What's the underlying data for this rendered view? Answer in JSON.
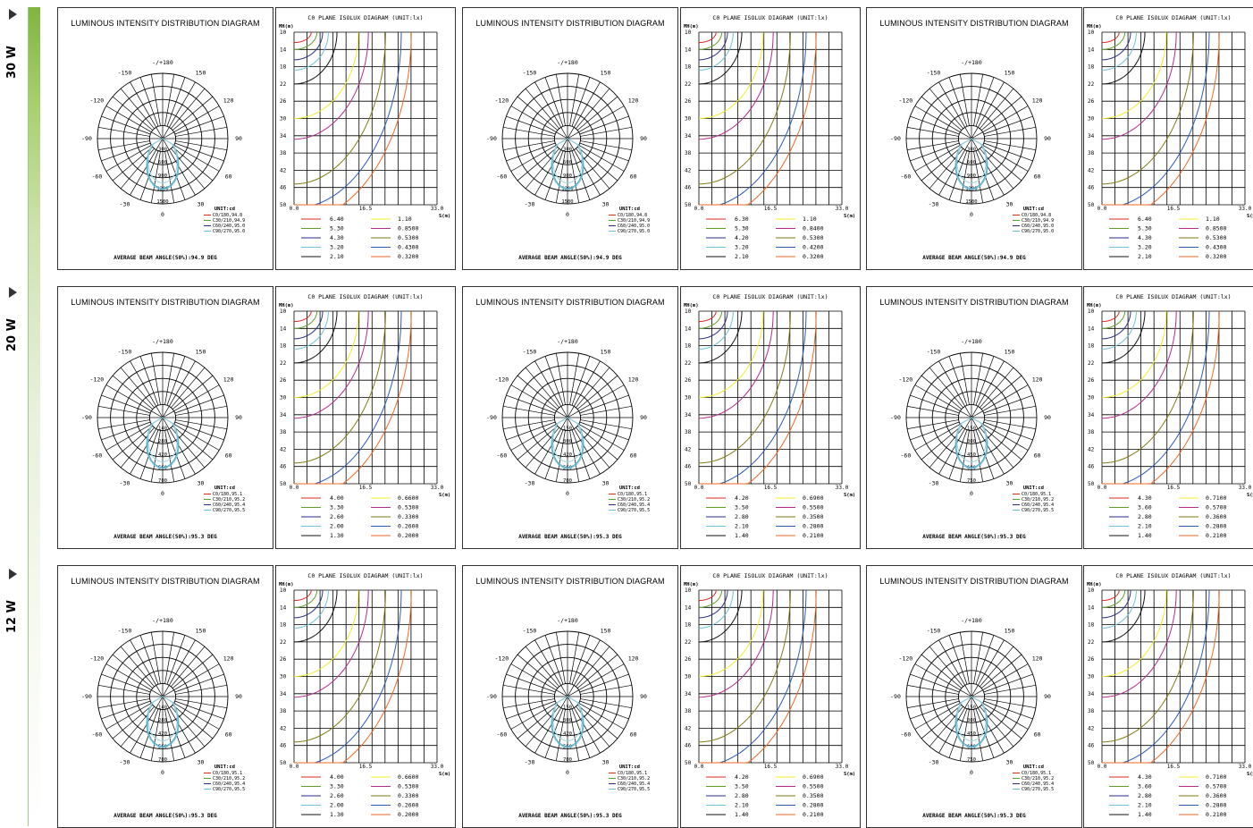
{
  "rows": [
    {
      "power": "30 W",
      "panels": [
        {
          "polar": {
            "title": "LUMINOUS INTENSITY DISTRIBUTION DIAGRAM",
            "angles": [
              "-/+180",
              "150",
              "120",
              "90",
              "60",
              "30",
              "0",
              "-30",
              "-60",
              "-90",
              "-120",
              "-150"
            ],
            "rings": [
              "300",
              "600",
              "900",
              "1200",
              "1500"
            ],
            "unit": "UNIT:cd",
            "legend": [
              "C0/180,94.8",
              "C30/210,94.9",
              "C60/240,95.0",
              "C90/270,95.0"
            ],
            "beam": "AVERAGE BEAM ANGLE(50%):94.9 DEG"
          },
          "isolux": {
            "title": "C0 PLANE ISOLUX DIAGRAM (UNIT:lx)",
            "mh": "MH(m)",
            "y_ticks": [
              "10",
              "14",
              "18",
              "22",
              "26",
              "30",
              "34",
              "38",
              "42",
              "46",
              "50"
            ],
            "x_ticks": [
              "0.0",
              "16.5",
              "33.0"
            ],
            "s_unit": "S(m)",
            "legend_left": [
              "6.40",
              "5.30",
              "4.30",
              "3.20",
              "2.10"
            ],
            "legend_right": [
              "1.10",
              "0.8500",
              "0.5300",
              "0.4300",
              "0.3200"
            ]
          }
        },
        {
          "polar": {
            "title": "LUMINOUS INTENSITY DISTRIBUTION DIAGRAM",
            "angles": [
              "-/+180",
              "150",
              "120",
              "90",
              "60",
              "30",
              "0",
              "-30",
              "-60",
              "-90",
              "-120",
              "-150"
            ],
            "rings": [
              "300",
              "600",
              "900",
              "1200",
              "1500"
            ],
            "unit": "UNIT:cd",
            "legend": [
              "C0/180,94.8",
              "C30/210,94.9",
              "C60/240,95.0",
              "C90/270,95.0"
            ],
            "beam": "AVERAGE BEAM ANGLE(50%):94.9 DEG"
          },
          "isolux": {
            "title": "C0 PLANE ISOLUX DIAGRAM (UNIT:lx)",
            "mh": "MH(m)",
            "y_ticks": [
              "10",
              "14",
              "18",
              "22",
              "26",
              "30",
              "34",
              "38",
              "42",
              "46",
              "50"
            ],
            "x_ticks": [
              "0.0",
              "16.5",
              "33.0"
            ],
            "s_unit": "S(m)",
            "legend_left": [
              "6.30",
              "5.30",
              "4.20",
              "3.20",
              "2.10"
            ],
            "legend_right": [
              "1.10",
              "0.8400",
              "0.5300",
              "0.4200",
              "0.3200"
            ]
          }
        },
        {
          "polar": {
            "title": "LUMINOUS INTENSITY DISTRIBUTION DIAGRAM",
            "angles": [
              "-/+180",
              "150",
              "120",
              "90",
              "60",
              "30",
              "0",
              "-30",
              "-60",
              "-90",
              "-120",
              "-150"
            ],
            "rings": [
              "300",
              "600",
              "900",
              "1200",
              "1500"
            ],
            "unit": "UNIT:cd",
            "legend": [
              "C0/180,94.8",
              "C30/210,94.9",
              "C60/240,95.0",
              "C90/270,95.0"
            ],
            "beam": "AVERAGE BEAM ANGLE(50%):94.9 DEG"
          },
          "isolux": {
            "title": "C0 PLANE ISOLUX DIAGRAM (UNIT:lx)",
            "mh": "MH(m)",
            "y_ticks": [
              "10",
              "14",
              "18",
              "22",
              "26",
              "30",
              "34",
              "38",
              "42",
              "46",
              "50"
            ],
            "x_ticks": [
              "0.0",
              "16.5",
              "33.0"
            ],
            "s_unit": "S(m)",
            "legend_left": [
              "6.40",
              "5.30",
              "4.30",
              "3.20",
              "2.10"
            ],
            "legend_right": [
              "1.10",
              "0.8500",
              "0.5300",
              "0.4300",
              "0.3200"
            ]
          }
        }
      ]
    },
    {
      "power": "20 W",
      "panels": [
        {
          "polar": {
            "title": "LUMINOUS INTENSITY DISTRIBUTION DIAGRAM",
            "angles": [
              "-/+180",
              "150",
              "120",
              "90",
              "60",
              "30",
              "0",
              "-30",
              "-60",
              "-90",
              "-120",
              "-150"
            ],
            "rings": [
              "140",
              "280",
              "420",
              "560",
              "700"
            ],
            "unit": "UNIT:cd",
            "legend": [
              "C0/180,95.1",
              "C30/210,95.2",
              "C60/240,95.4",
              "C90/270,95.5"
            ],
            "beam": "AVERAGE BEAM ANGLE(50%):95.3 DEG"
          },
          "isolux": {
            "title": "C0 PLANE ISOLUX DIAGRAM (UNIT:lx)",
            "mh": "MH(m)",
            "y_ticks": [
              "10",
              "14",
              "18",
              "22",
              "26",
              "30",
              "34",
              "38",
              "42",
              "46",
              "50"
            ],
            "x_ticks": [
              "0.0",
              "16.5",
              "33.0"
            ],
            "s_unit": "S(m)",
            "legend_left": [
              "4.00",
              "3.30",
              "2.60",
              "2.00",
              "1.30"
            ],
            "legend_right": [
              "0.6600",
              "0.5300",
              "0.3300",
              "0.2600",
              "0.2000"
            ]
          }
        },
        {
          "polar": {
            "title": "LUMINOUS INTENSITY DISTRIBUTION DIAGRAM",
            "angles": [
              "-/+180",
              "150",
              "120",
              "90",
              "60",
              "30",
              "0",
              "-30",
              "-60",
              "-90",
              "-120",
              "-150"
            ],
            "rings": [
              "150",
              "300",
              "420",
              "560",
              "700"
            ],
            "unit": "UNIT:cd",
            "legend": [
              "C0/180,95.1",
              "C30/210,95.2",
              "C60/240,95.4",
              "C90/270,95.5"
            ],
            "beam": "AVERAGE BEAM ANGLE(50%):95.3 DEG"
          },
          "isolux": {
            "title": "C0 PLANE ISOLUX DIAGRAM (UNIT:lx)",
            "mh": "MH(m)",
            "y_ticks": [
              "10",
              "14",
              "18",
              "22",
              "26",
              "30",
              "34",
              "38",
              "42",
              "46",
              "50"
            ],
            "x_ticks": [
              "0.0",
              "16.5",
              "33.0"
            ],
            "s_unit": "S(m)",
            "legend_left": [
              "4.20",
              "3.50",
              "2.80",
              "2.10",
              "1.40"
            ],
            "legend_right": [
              "0.6900",
              "0.5500",
              "0.3500",
              "0.2800",
              "0.2100"
            ]
          }
        },
        {
          "polar": {
            "title": "LUMINOUS INTENSITY DISTRIBUTION DIAGRAM",
            "angles": [
              "-/+180",
              "150",
              "120",
              "90",
              "60",
              "30",
              "0",
              "-30",
              "-60",
              "-90",
              "-120",
              "-150"
            ],
            "rings": [
              "150",
              "300",
              "450",
              "600",
              "750"
            ],
            "unit": "UNIT:cd",
            "legend": [
              "C0/180,95.1",
              "C30/210,95.2",
              "C60/240,95.4",
              "C90/270,95.5"
            ],
            "beam": "AVERAGE BEAM ANGLE(50%):95.3 DEG"
          },
          "isolux": {
            "title": "C0 PLANE ISOLUX DIAGRAM (UNIT:lx)",
            "mh": "MH(m)",
            "y_ticks": [
              "10",
              "14",
              "18",
              "22",
              "26",
              "30",
              "34",
              "38",
              "42",
              "46",
              "50"
            ],
            "x_ticks": [
              "0.0",
              "16.5",
              "33.0"
            ],
            "s_unit": "S(m)",
            "legend_left": [
              "4.30",
              "3.60",
              "2.80",
              "2.10",
              "1.40"
            ],
            "legend_right": [
              "0.7100",
              "0.5700",
              "0.3600",
              "0.2800",
              "0.2100"
            ]
          }
        }
      ]
    },
    {
      "power": "12 W",
      "panels": [
        {
          "polar": {
            "title": "LUMINOUS INTENSITY DISTRIBUTION DIAGRAM",
            "angles": [
              "-/+180",
              "150",
              "120",
              "90",
              "60",
              "30",
              "0",
              "-30",
              "-60",
              "-90",
              "-120",
              "-150"
            ],
            "rings": [
              "140",
              "280",
              "420",
              "560",
              "700"
            ],
            "unit": "UNIT:cd",
            "legend": [
              "C0/180,95.1",
              "C30/210,95.2",
              "C60/240,95.4",
              "C90/270,95.5"
            ],
            "beam": "AVERAGE BEAM ANGLE(50%):95.3 DEG"
          },
          "isolux": {
            "title": "C0 PLANE ISOLUX DIAGRAM (UNIT:lx)",
            "mh": "MH(m)",
            "y_ticks": [
              "10",
              "14",
              "18",
              "22",
              "26",
              "30",
              "34",
              "38",
              "42",
              "46",
              "50"
            ],
            "x_ticks": [
              "0.0",
              "16.5",
              "33.0"
            ],
            "s_unit": "S(m)",
            "legend_left": [
              "4.00",
              "3.30",
              "2.60",
              "2.00",
              "1.30"
            ],
            "legend_right": [
              "0.6600",
              "0.5300",
              "0.3300",
              "0.2600",
              "0.2000"
            ]
          }
        },
        {
          "polar": {
            "title": "LUMINOUS INTENSITY DISTRIBUTION DIAGRAM",
            "angles": [
              "-/+180",
              "150",
              "120",
              "90",
              "60",
              "30",
              "0",
              "-30",
              "-60",
              "-90",
              "-120",
              "-150"
            ],
            "rings": [
              "150",
              "300",
              "420",
              "560",
              "700"
            ],
            "unit": "UNIT:cd",
            "legend": [
              "C0/180,95.1",
              "C30/210,95.2",
              "C60/240,95.4",
              "C90/270,95.5"
            ],
            "beam": "AVERAGE BEAM ANGLE(50%):95.3 DEG"
          },
          "isolux": {
            "title": "C0 PLANE ISOLUX DIAGRAM (UNIT:lx)",
            "mh": "MH(m)",
            "y_ticks": [
              "10",
              "14",
              "18",
              "22",
              "26",
              "30",
              "34",
              "38",
              "42",
              "46",
              "50"
            ],
            "x_ticks": [
              "0.0",
              "16.5",
              "33.0"
            ],
            "s_unit": "S(m)",
            "legend_left": [
              "4.20",
              "3.50",
              "2.80",
              "2.10",
              "1.40"
            ],
            "legend_right": [
              "0.6900",
              "0.5500",
              "0.3500",
              "0.2800",
              "0.2100"
            ]
          }
        },
        {
          "polar": {
            "title": "LUMINOUS INTENSITY DISTRIBUTION DIAGRAM",
            "angles": [
              "-/+180",
              "150",
              "120",
              "90",
              "60",
              "30",
              "0",
              "-30",
              "-60",
              "-90",
              "-120",
              "-150"
            ],
            "rings": [
              "150",
              "300",
              "450",
              "600",
              "750"
            ],
            "unit": "UNIT:cd",
            "legend": [
              "C0/180,95.1",
              "C30/210,95.2",
              "C60/240,95.4",
              "C90/270,95.5"
            ],
            "beam": "AVERAGE BEAM ANGLE(50%):95.3 DEG"
          },
          "isolux": {
            "title": "C0 PLANE ISOLUX DIAGRAM (UNIT:lx)",
            "mh": "MH(m)",
            "y_ticks": [
              "10",
              "14",
              "18",
              "22",
              "26",
              "30",
              "34",
              "38",
              "42",
              "46",
              "50"
            ],
            "x_ticks": [
              "0.0",
              "16.5",
              "33.0"
            ],
            "s_unit": "S(m)",
            "legend_left": [
              "4.30",
              "3.60",
              "2.80",
              "2.10",
              "1.40"
            ],
            "legend_right": [
              "0.7100",
              "0.5700",
              "0.3600",
              "0.2800",
              "0.2100"
            ]
          }
        }
      ]
    }
  ],
  "colors": {
    "red": "#e0271f",
    "green": "#5fa126",
    "navy": "#2a2f8c",
    "cyan": "#6cc2d6",
    "black": "#111111",
    "yellow": "#f3ee2a",
    "magenta": "#b32d8e",
    "olive": "#7f7a14",
    "blue": "#2f5bb8",
    "orange": "#ee6a26",
    "brand_green": "#7fb53f"
  }
}
